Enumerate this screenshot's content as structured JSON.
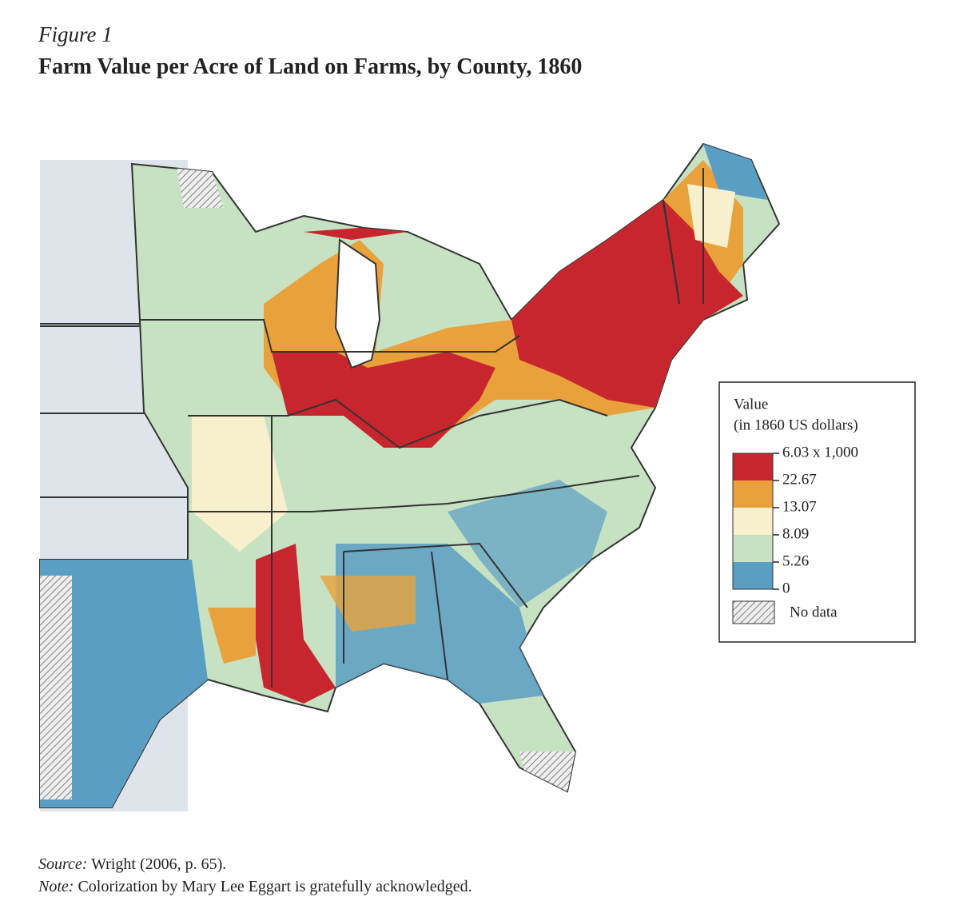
{
  "figure_label": "Figure 1",
  "title": "Farm Value per Acre of Land on Farms, by County, 1860",
  "legend": {
    "title": "Value",
    "subtitle": "(in 1860 US dollars)",
    "breaks": [
      {
        "value": 6030,
        "label": "6.03 x 1,000"
      },
      22.67,
      13.07,
      8.09,
      5.26,
      0
    ],
    "colors": [
      "#c8262e",
      "#e9a23b",
      "#f8f0cc",
      "#c7e2c2",
      "#5b9ec4"
    ],
    "no_data": "No data"
  },
  "source": {
    "prefix": "Source:",
    "text": "Wright (2006, p. 65)."
  },
  "note": {
    "prefix": "Note:",
    "text": "Colorization by Mary Lee Eggart is gratefully acknowledged."
  }
}
